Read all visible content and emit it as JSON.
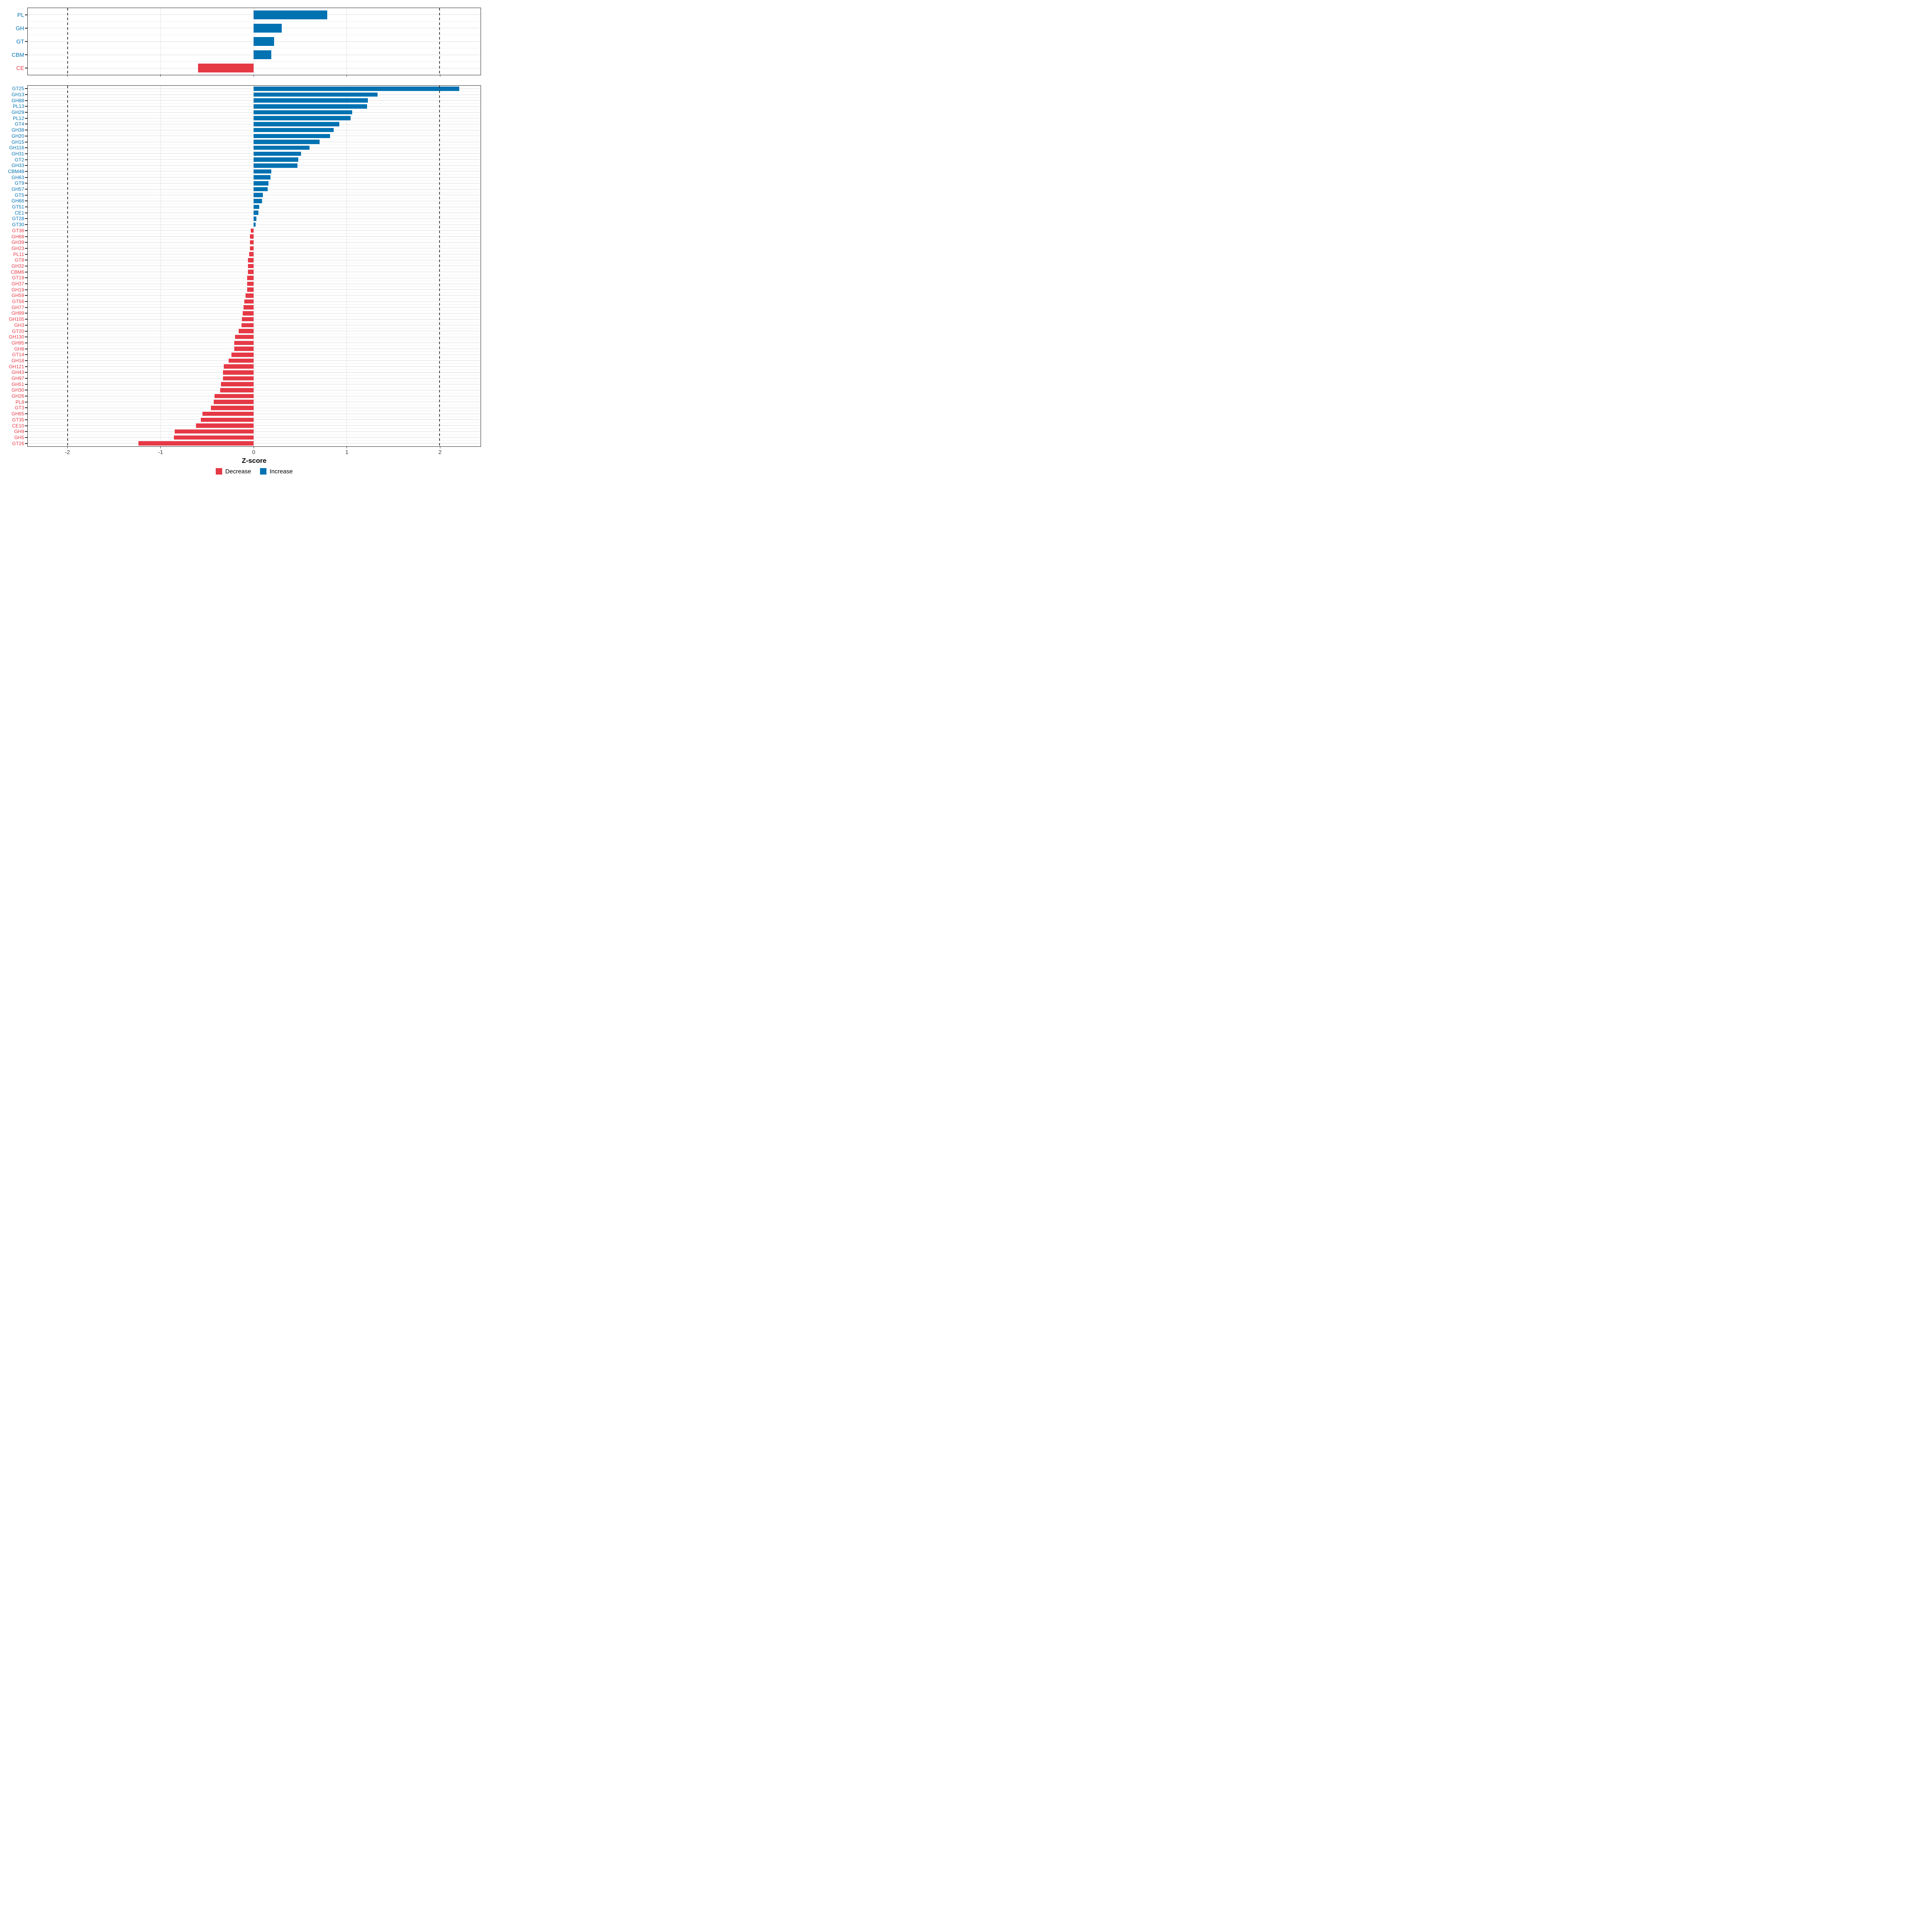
{
  "chart_data": {
    "type": "bar",
    "orientation": "horizontal",
    "title": "",
    "xlabel": "Z-score",
    "axis": {
      "xmin": -2.43,
      "xmax": 2.44,
      "ticks": [
        -2,
        -1,
        0,
        1,
        2
      ],
      "tick_labels": [
        "-2",
        "-1",
        "0",
        "1",
        "2"
      ],
      "dashed_vlines": [
        -2,
        2
      ],
      "grid": "on",
      "legend_position": "bottom"
    },
    "colors": {
      "increase": "#0072B2",
      "decrease": "#E63946",
      "panel_border": "#2b2b2b",
      "gridline": "#e0e0e0"
    },
    "legend": [
      {
        "label": "Decrease",
        "color": "#E63946"
      },
      {
        "label": "Increase",
        "color": "#0072B2"
      }
    ],
    "panels": [
      {
        "name": "class-panel",
        "categories": [
          "PL",
          "GH",
          "GT",
          "CBM",
          "CE"
        ],
        "values": [
          0.79,
          0.3,
          0.22,
          0.19,
          -0.6
        ]
      },
      {
        "name": "family-panel",
        "categories": [
          "GT25",
          "GH13",
          "GH88",
          "PL13",
          "GH29",
          "PL12",
          "GT4",
          "GH38",
          "GH20",
          "GH15",
          "GH116",
          "GH31",
          "GT2",
          "GH33",
          "CBM48",
          "GH63",
          "GT9",
          "GH57",
          "GT5",
          "GH66",
          "GT51",
          "CE1",
          "GT28",
          "GT30",
          "GT36",
          "GH68",
          "GH39",
          "GH23",
          "PL11",
          "GT8",
          "GH32",
          "CBM6",
          "GT19",
          "GH37",
          "GH19",
          "GH59",
          "GT56",
          "GH77",
          "GH99",
          "GH105",
          "GH3",
          "GT20",
          "GH130",
          "GH95",
          "GH8",
          "GT14",
          "GH18",
          "GH121",
          "GH43",
          "GH97",
          "GH51",
          "GH30",
          "GH26",
          "PL8",
          "GT3",
          "GH65",
          "GT35",
          "CE10",
          "GH9",
          "GH5",
          "GT26"
        ],
        "values": [
          2.21,
          1.33,
          1.23,
          1.22,
          1.06,
          1.04,
          0.92,
          0.86,
          0.82,
          0.71,
          0.6,
          0.51,
          0.48,
          0.47,
          0.19,
          0.18,
          0.16,
          0.15,
          0.1,
          0.09,
          0.06,
          0.05,
          0.03,
          0.02,
          -0.03,
          -0.04,
          -0.04,
          -0.04,
          -0.05,
          -0.06,
          -0.06,
          -0.06,
          -0.07,
          -0.07,
          -0.07,
          -0.09,
          -0.1,
          -0.11,
          -0.12,
          -0.125,
          -0.13,
          -0.16,
          -0.2,
          -0.21,
          -0.21,
          -0.24,
          -0.27,
          -0.32,
          -0.33,
          -0.33,
          -0.35,
          -0.36,
          -0.42,
          -0.43,
          -0.46,
          -0.55,
          -0.57,
          -0.62,
          -0.85,
          -0.86,
          -1.24
        ]
      }
    ]
  }
}
